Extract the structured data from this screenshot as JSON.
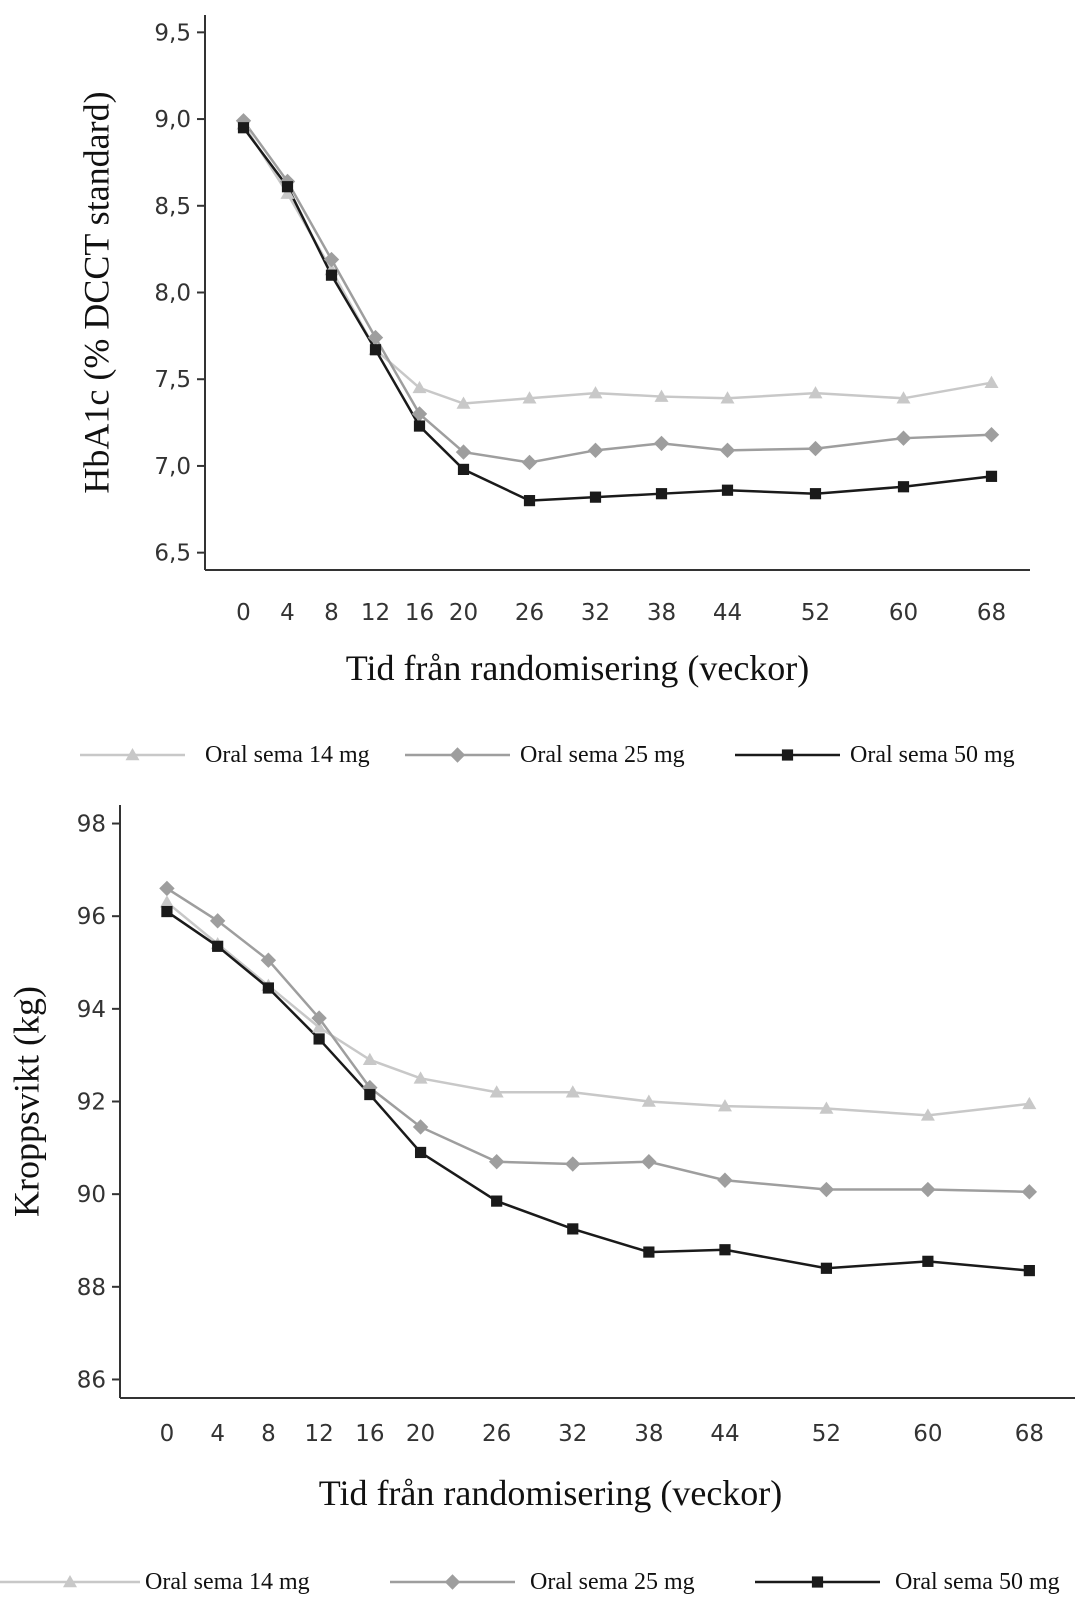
{
  "chart_data": [
    {
      "type": "line",
      "x_label": "Tid från randomisering (veckor)",
      "y_label": "HbA1c (% DCCT standard)",
      "x": [
        0,
        4,
        8,
        12,
        16,
        20,
        26,
        32,
        38,
        44,
        52,
        60,
        68
      ],
      "xlim": [
        -3.5,
        71.5
      ],
      "xticks": [
        0,
        4,
        8,
        12,
        16,
        20,
        26,
        32,
        38,
        44,
        52,
        60,
        68
      ],
      "ylim": [
        6.4,
        9.6
      ],
      "yticks": [
        {
          "value": 6.5,
          "label": "6,5"
        },
        {
          "value": 7.0,
          "label": "7,0"
        },
        {
          "value": 7.5,
          "label": "7,5"
        },
        {
          "value": 8.0,
          "label": "8,0"
        },
        {
          "value": 8.5,
          "label": "8,5"
        },
        {
          "value": 9.0,
          "label": "9,0"
        },
        {
          "value": 9.5,
          "label": "9,5"
        }
      ],
      "series": [
        {
          "name": "Oral sema 14 mg",
          "color": "#c8c8c8",
          "marker": "triangle",
          "values": [
            8.97,
            8.57,
            8.13,
            7.67,
            7.45,
            7.36,
            7.39,
            7.42,
            7.4,
            7.39,
            7.42,
            7.39,
            7.48
          ]
        },
        {
          "name": "Oral sema 25 mg",
          "color": "#9e9e9e",
          "marker": "diamond",
          "values": [
            8.99,
            8.64,
            8.19,
            7.74,
            7.3,
            7.08,
            7.02,
            7.09,
            7.13,
            7.09,
            7.1,
            7.16,
            7.18
          ]
        },
        {
          "name": "Oral sema 50 mg",
          "color": "#1a1a1a",
          "marker": "square",
          "values": [
            8.95,
            8.61,
            8.1,
            7.67,
            7.23,
            6.98,
            6.8,
            6.82,
            6.84,
            6.86,
            6.84,
            6.88,
            6.94
          ]
        }
      ]
    },
    {
      "type": "line",
      "x_label": "Tid från randomisering (veckor)",
      "y_label": "Kroppsvikt (kg)",
      "x": [
        0,
        4,
        8,
        12,
        16,
        20,
        26,
        32,
        38,
        44,
        52,
        60,
        68
      ],
      "xlim": [
        -3.7,
        71.6
      ],
      "xticks": [
        0,
        4,
        8,
        12,
        16,
        20,
        26,
        32,
        38,
        44,
        52,
        60,
        68
      ],
      "ylim": [
        85.6,
        98.4
      ],
      "yticks": [
        86,
        88,
        90,
        92,
        94,
        96,
        98
      ],
      "series": [
        {
          "name": "Oral sema 14 mg",
          "color": "#c8c8c8",
          "marker": "triangle",
          "values": [
            96.3,
            95.4,
            94.5,
            93.6,
            92.9,
            92.5,
            92.2,
            92.2,
            92.0,
            91.9,
            91.85,
            91.7,
            91.95
          ]
        },
        {
          "name": "Oral sema 25 mg",
          "color": "#9e9e9e",
          "marker": "diamond",
          "values": [
            96.6,
            95.9,
            95.05,
            93.8,
            92.3,
            91.45,
            90.7,
            90.65,
            90.7,
            90.3,
            90.1,
            90.1,
            90.05
          ]
        },
        {
          "name": "Oral sema 50 mg",
          "color": "#1a1a1a",
          "marker": "square",
          "values": [
            96.1,
            95.35,
            94.45,
            93.35,
            92.15,
            90.9,
            89.85,
            89.25,
            88.75,
            88.8,
            88.4,
            88.55,
            88.35
          ]
        }
      ]
    }
  ]
}
